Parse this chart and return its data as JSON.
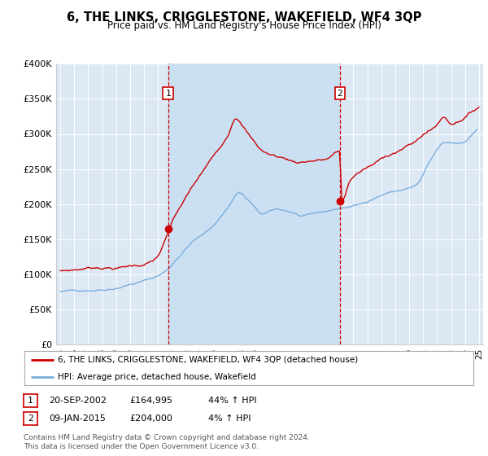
{
  "title": "6, THE LINKS, CRIGGLESTONE, WAKEFIELD, WF4 3QP",
  "subtitle": "Price paid vs. HM Land Registry's House Price Index (HPI)",
  "legend_line1": "6, THE LINKS, CRIGGLESTONE, WAKEFIELD, WF4 3QP (detached house)",
  "legend_line2": "HPI: Average price, detached house, Wakefield",
  "sale1_date": "20-SEP-2002",
  "sale1_price": "£164,995",
  "sale1_pct": "44% ↑ HPI",
  "sale1_year": 2002.72,
  "sale1_value": 164995,
  "sale2_date": "09-JAN-2015",
  "sale2_price": "£204,000",
  "sale2_pct": "4% ↑ HPI",
  "sale2_year": 2015.03,
  "sale2_value": 204000,
  "footnote1": "Contains HM Land Registry data © Crown copyright and database right 2024.",
  "footnote2": "This data is licensed under the Open Government Licence v3.0.",
  "price_line_color": "#cc0000",
  "hpi_line_color": "#7aaddb",
  "shade_color": "#c8dff2",
  "background_color": "#dce9f5",
  "plot_bg_color": "#dce9f5",
  "ylim": [
    0,
    400000
  ],
  "xlim": [
    1994.7,
    2025.3
  ],
  "yticks": [
    0,
    50000,
    100000,
    150000,
    200000,
    250000,
    300000,
    350000,
    400000
  ],
  "ytick_labels": [
    "£0",
    "£50K",
    "£100K",
    "£150K",
    "£200K",
    "£250K",
    "£300K",
    "£350K",
    "£400K"
  ],
  "xticks": [
    1995,
    1996,
    1997,
    1998,
    1999,
    2000,
    2001,
    2002,
    2003,
    2004,
    2005,
    2006,
    2007,
    2008,
    2009,
    2010,
    2011,
    2012,
    2013,
    2014,
    2015,
    2016,
    2017,
    2018,
    2019,
    2020,
    2021,
    2022,
    2023,
    2024,
    2025
  ]
}
